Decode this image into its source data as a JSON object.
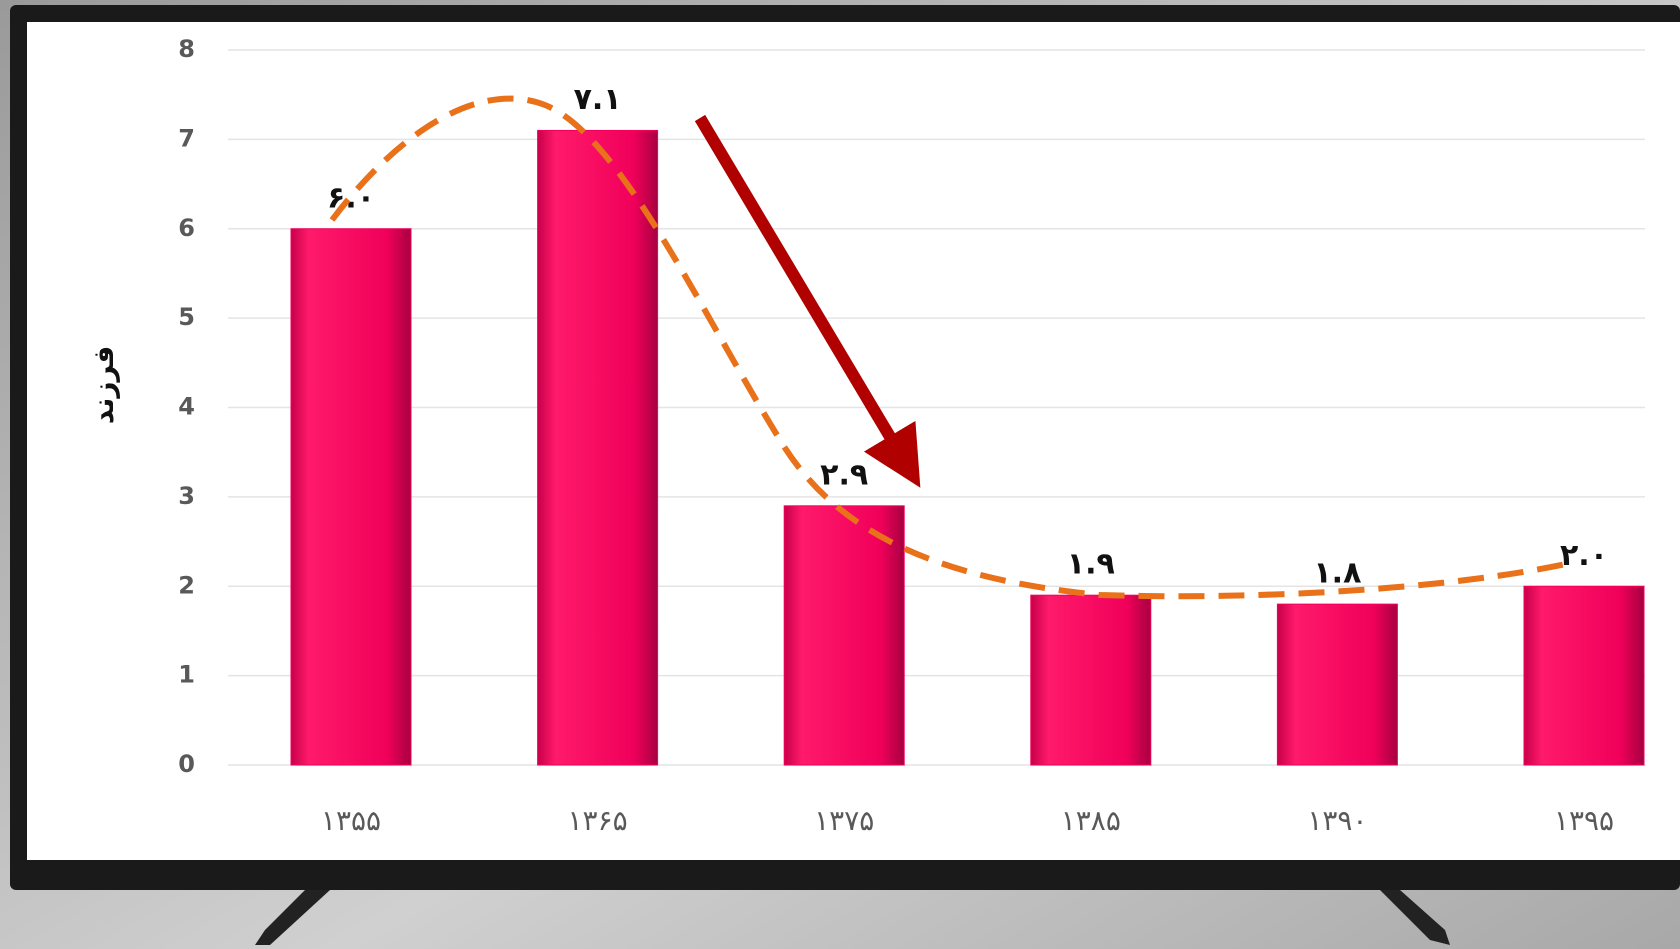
{
  "chart_data": {
    "type": "bar",
    "y_label": "فرزند",
    "categories": [
      "۱۳۵۵",
      "۱۳۶۵",
      "۱۳۷۵",
      "۱۳۸۵",
      "۱۳۹۰",
      "۱۳۹۵"
    ],
    "values": [
      6.0,
      7.1,
      2.9,
      1.9,
      1.8,
      2.0
    ],
    "value_labels": [
      "۶.۰",
      "۷.۱",
      "۲.۹",
      "۱.۹",
      "۱.۸",
      "۲.۰"
    ],
    "color": "#f2005c",
    "ylim": [
      0,
      8
    ],
    "yticks": [
      0,
      1,
      2,
      3,
      4,
      5,
      6,
      7,
      8
    ],
    "grid": true
  }
}
